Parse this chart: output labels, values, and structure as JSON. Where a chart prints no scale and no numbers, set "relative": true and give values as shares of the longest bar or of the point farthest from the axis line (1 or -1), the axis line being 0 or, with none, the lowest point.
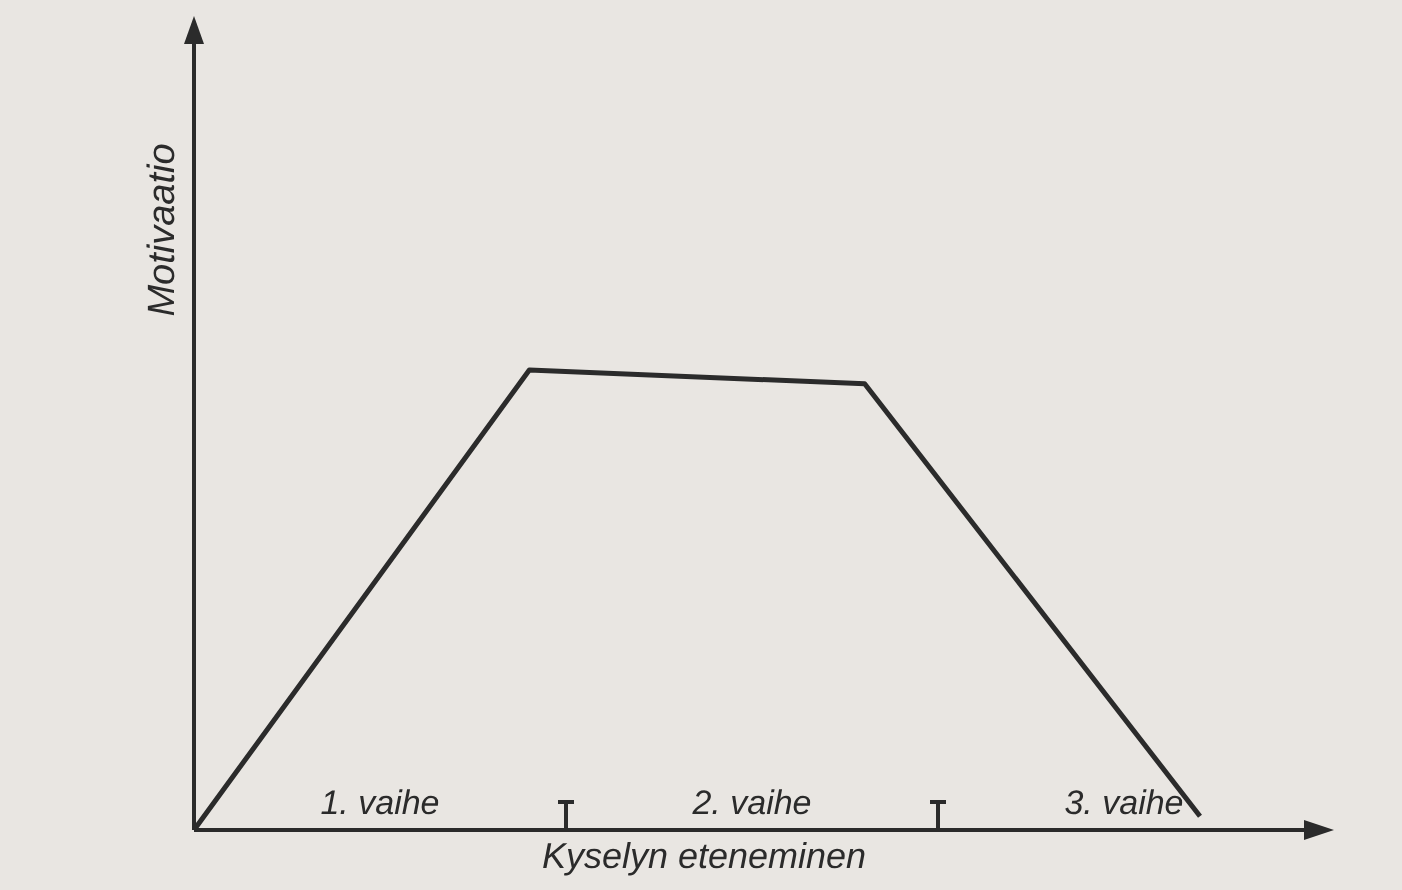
{
  "chart_data": {
    "type": "line",
    "relative": true,
    "xlabel": "Kyselyn eteneminen",
    "ylabel": "Motivaatio",
    "categories": [
      null,
      null,
      null,
      null
    ],
    "marker": "none",
    "line_style": "solid",
    "series": [
      {
        "color": "#2b2b2b",
        "values": [
          0,
          1,
          0.97,
          0.03
        ]
      }
    ],
    "annotations": [
      "1. vaihe",
      "2. vaihe",
      "3. vaihe"
    ]
  }
}
